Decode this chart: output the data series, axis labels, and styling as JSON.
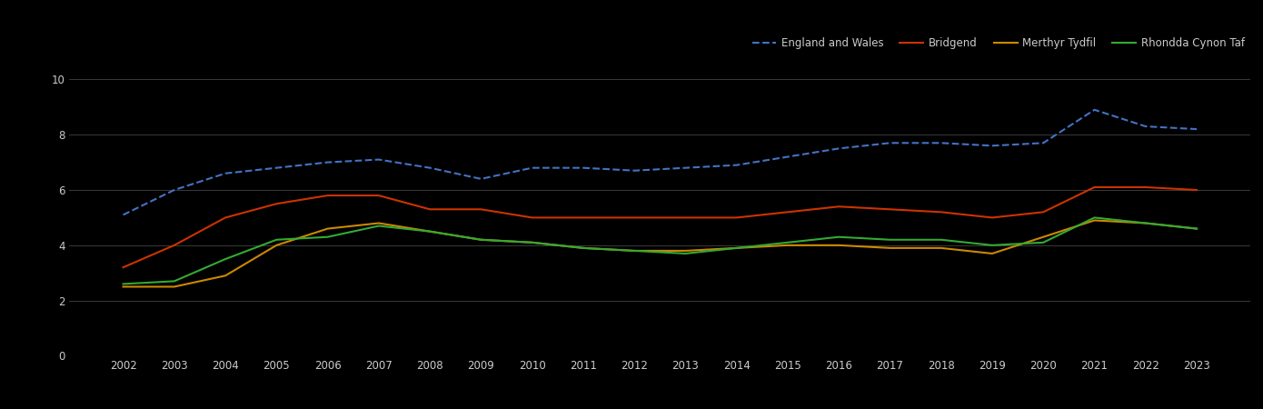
{
  "years": [
    2002,
    2003,
    2004,
    2005,
    2006,
    2007,
    2008,
    2009,
    2010,
    2011,
    2012,
    2013,
    2014,
    2015,
    2016,
    2017,
    2018,
    2019,
    2020,
    2021,
    2022,
    2023
  ],
  "england_wales": [
    5.1,
    6.0,
    6.6,
    6.8,
    7.0,
    7.1,
    6.8,
    6.4,
    6.8,
    6.8,
    6.7,
    6.8,
    6.9,
    7.2,
    7.5,
    7.7,
    7.7,
    7.6,
    7.7,
    8.9,
    8.3,
    8.2
  ],
  "bridgend": [
    3.2,
    4.0,
    5.0,
    5.5,
    5.8,
    5.8,
    5.3,
    5.3,
    5.0,
    5.0,
    5.0,
    5.0,
    5.0,
    5.2,
    5.4,
    5.3,
    5.2,
    5.0,
    5.2,
    6.1,
    6.1,
    6.0
  ],
  "merthyr_tydfil": [
    2.5,
    2.5,
    2.9,
    4.0,
    4.6,
    4.8,
    4.5,
    4.2,
    4.1,
    3.9,
    3.8,
    3.8,
    3.9,
    4.0,
    4.0,
    3.9,
    3.9,
    3.7,
    4.3,
    4.9,
    4.8,
    4.6
  ],
  "rhondda_cynon_taf": [
    2.6,
    2.7,
    3.5,
    4.2,
    4.3,
    4.7,
    4.5,
    4.2,
    4.1,
    3.9,
    3.8,
    3.7,
    3.9,
    4.1,
    4.3,
    4.2,
    4.2,
    4.0,
    4.1,
    5.0,
    4.8,
    4.6
  ],
  "england_wales_color": "#4472c4",
  "bridgend_color": "#cc3300",
  "merthyr_color": "#cc8800",
  "rhondda_color": "#33aa33",
  "background_color": "#000000",
  "grid_color": "#444444",
  "text_color": "#cccccc",
  "ylim": [
    0,
    10.8
  ],
  "yticks": [
    0,
    2,
    4,
    6,
    8,
    10
  ],
  "legend_labels": [
    "England and Wales",
    "Bridgend",
    "Merthyr Tydfil",
    "Rhondda Cynon Taf"
  ]
}
